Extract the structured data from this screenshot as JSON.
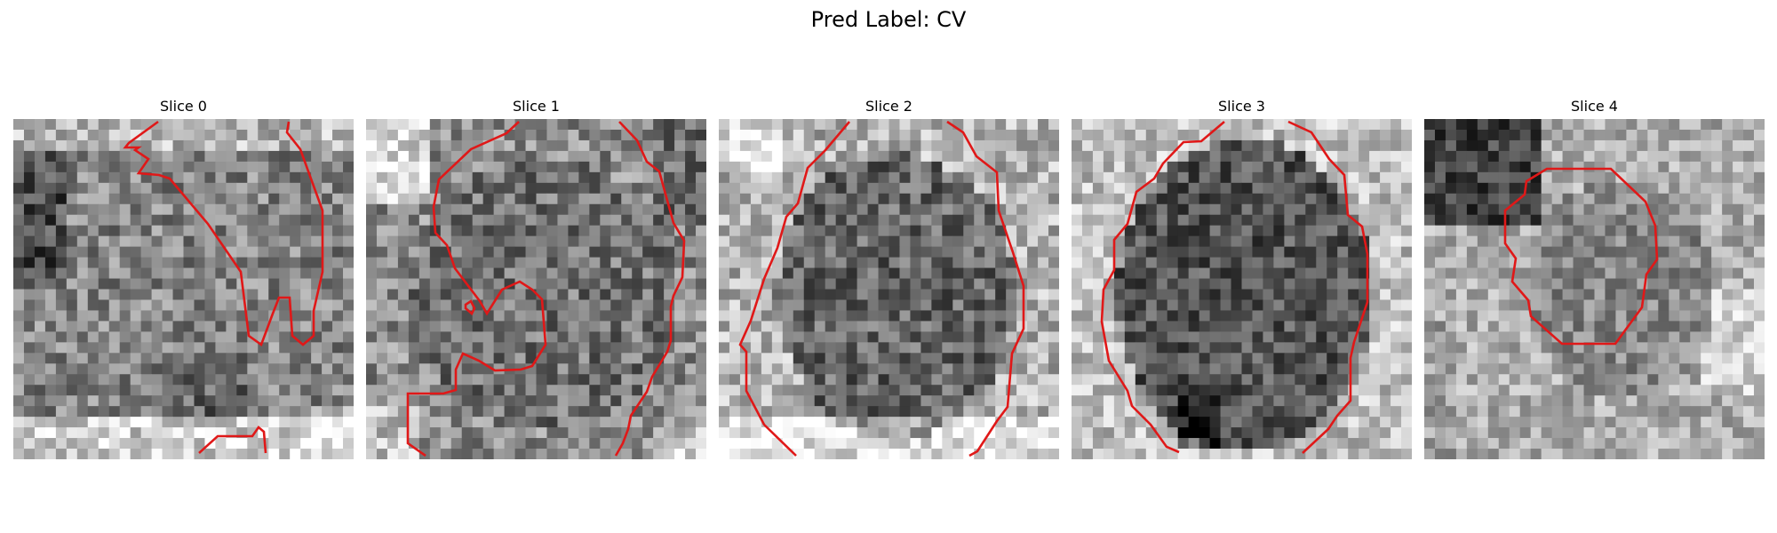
{
  "figure": {
    "title": "Pred Label: CV"
  },
  "slices": [
    {
      "title": "Slice 0"
    },
    {
      "title": "Slice 1"
    },
    {
      "title": "Slice 2"
    },
    {
      "title": "Slice 3"
    },
    {
      "title": "Slice 4"
    }
  ],
  "colors": {
    "contour": "#e01818"
  }
}
